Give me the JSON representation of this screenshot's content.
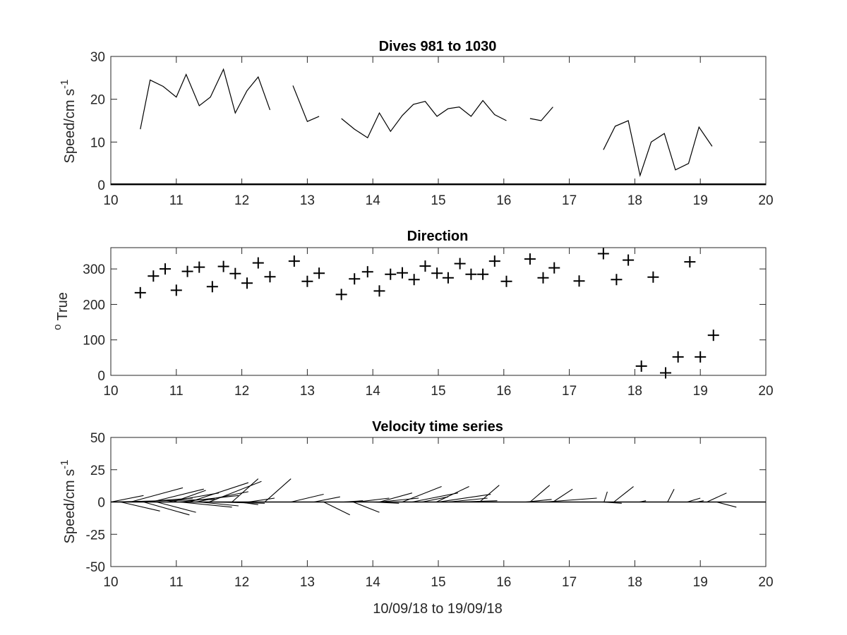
{
  "chart_data": [
    {
      "type": "line",
      "title": "Dives 981 to 1030",
      "ylabel": "Speed/cm s",
      "ylabel_superscript": "-1",
      "xlim": [
        10,
        20
      ],
      "ylim": [
        0,
        30
      ],
      "xticks": [
        10,
        11,
        12,
        13,
        14,
        15,
        16,
        17,
        18,
        19,
        20
      ],
      "yticks": [
        0,
        10,
        20,
        30
      ],
      "grid": false,
      "segments": [
        [
          [
            10.45,
            13
          ],
          [
            10.6,
            24.5
          ],
          [
            10.8,
            23
          ],
          [
            11.0,
            20.5
          ],
          [
            11.15,
            25.8
          ],
          [
            11.35,
            18.5
          ],
          [
            11.52,
            20.5
          ],
          [
            11.72,
            27
          ],
          [
            11.9,
            16.8
          ],
          [
            12.08,
            22
          ],
          [
            12.25,
            25.2
          ],
          [
            12.43,
            17.5
          ]
        ],
        [
          [
            12.78,
            23.2
          ],
          [
            13.0,
            14.8
          ],
          [
            13.18,
            16
          ]
        ],
        [
          [
            13.52,
            15.5
          ],
          [
            13.72,
            13
          ],
          [
            13.92,
            11
          ],
          [
            14.1,
            16.8
          ],
          [
            14.27,
            12.5
          ],
          [
            14.45,
            16.2
          ],
          [
            14.62,
            18.8
          ],
          [
            14.8,
            19.5
          ],
          [
            14.98,
            16
          ],
          [
            15.15,
            17.8
          ],
          [
            15.32,
            18.2
          ],
          [
            15.5,
            16
          ],
          [
            15.68,
            19.7
          ],
          [
            15.86,
            16.4
          ],
          [
            16.04,
            15
          ]
        ],
        [
          [
            16.4,
            15.5
          ],
          [
            16.57,
            15
          ],
          [
            16.75,
            18.2
          ]
        ],
        [
          [
            17.52,
            8.2
          ],
          [
            17.7,
            13.7
          ],
          [
            17.9,
            15
          ],
          [
            18.08,
            2.2
          ],
          [
            18.25,
            10
          ],
          [
            18.45,
            12
          ],
          [
            18.62,
            3.5
          ],
          [
            18.82,
            5
          ],
          [
            18.98,
            13.5
          ],
          [
            19.18,
            9
          ]
        ]
      ]
    },
    {
      "type": "scatter",
      "title": "Direction",
      "ylabel": "True",
      "ylabel_superscript": "o",
      "xlim": [
        10,
        20
      ],
      "ylim": [
        0,
        360
      ],
      "xticks": [
        10,
        11,
        12,
        13,
        14,
        15,
        16,
        17,
        18,
        19,
        20
      ],
      "yticks": [
        0,
        100,
        200,
        300
      ],
      "grid": false,
      "marker": "+",
      "points": [
        [
          10.45,
          233
        ],
        [
          10.65,
          280
        ],
        [
          10.83,
          300
        ],
        [
          11.0,
          240
        ],
        [
          11.17,
          293
        ],
        [
          11.35,
          305
        ],
        [
          11.55,
          250
        ],
        [
          11.72,
          307
        ],
        [
          11.9,
          287
        ],
        [
          12.08,
          260
        ],
        [
          12.25,
          317
        ],
        [
          12.43,
          278
        ],
        [
          12.8,
          322
        ],
        [
          13.0,
          265
        ],
        [
          13.18,
          288
        ],
        [
          13.52,
          228
        ],
        [
          13.72,
          272
        ],
        [
          13.92,
          292
        ],
        [
          14.1,
          238
        ],
        [
          14.27,
          285
        ],
        [
          14.45,
          289
        ],
        [
          14.63,
          270
        ],
        [
          14.8,
          308
        ],
        [
          14.98,
          288
        ],
        [
          15.15,
          275
        ],
        [
          15.33,
          315
        ],
        [
          15.5,
          285
        ],
        [
          15.68,
          285
        ],
        [
          15.86,
          322
        ],
        [
          16.04,
          265
        ],
        [
          16.4,
          328
        ],
        [
          16.6,
          275
        ],
        [
          16.77,
          303
        ],
        [
          17.15,
          266
        ],
        [
          17.52,
          343
        ],
        [
          17.72,
          270
        ],
        [
          17.9,
          325
        ],
        [
          18.1,
          26
        ],
        [
          18.28,
          277
        ],
        [
          18.47,
          7
        ],
        [
          18.66,
          52
        ],
        [
          18.84,
          320
        ],
        [
          19.0,
          52
        ],
        [
          19.2,
          113
        ]
      ]
    },
    {
      "type": "line",
      "title": "Velocity time series",
      "ylabel": "Speed/cm s",
      "ylabel_superscript": "-1",
      "xlabel": "10/09/18 to 19/09/18",
      "xlim": [
        10,
        20
      ],
      "ylim": [
        -50,
        50
      ],
      "xticks": [
        10,
        11,
        12,
        13,
        14,
        15,
        16,
        17,
        18,
        19,
        20
      ],
      "yticks": [
        -50,
        -25,
        0,
        25,
        50
      ],
      "grid": false,
      "note": "stick plot: each vector starts on the zero line at time t and ends at (t + dx, dy)",
      "vectors": [
        [
          10.0,
          0.5,
          5
        ],
        [
          10.0,
          1.6,
          2
        ],
        [
          10.15,
          0.6,
          -7
        ],
        [
          10.3,
          0.8,
          11
        ],
        [
          10.45,
          0.8,
          3
        ],
        [
          10.5,
          0.7,
          -10
        ],
        [
          10.62,
          0.8,
          10
        ],
        [
          10.7,
          0.6,
          -8
        ],
        [
          10.85,
          0.8,
          7
        ],
        [
          10.95,
          0.5,
          9
        ],
        [
          11.05,
          0.9,
          5
        ],
        [
          11.05,
          0.8,
          -4
        ],
        [
          11.2,
          0.9,
          15
        ],
        [
          11.3,
          0.8,
          8
        ],
        [
          11.35,
          0.6,
          -3
        ],
        [
          11.5,
          0.8,
          16
        ],
        [
          11.55,
          0.8,
          -1
        ],
        [
          11.85,
          0.4,
          18
        ],
        [
          11.95,
          0.3,
          -2
        ],
        [
          12.1,
          0.4,
          3
        ],
        [
          12.35,
          0.4,
          18
        ],
        [
          12.75,
          0.5,
          6
        ],
        [
          13.1,
          0.4,
          4
        ],
        [
          13.25,
          0.4,
          -10
        ],
        [
          13.55,
          0.3,
          1
        ],
        [
          13.75,
          0.5,
          3
        ],
        [
          13.7,
          0.4,
          -8
        ],
        [
          14.0,
          0.4,
          -1
        ],
        [
          14.1,
          0.5,
          7
        ],
        [
          14.1,
          0.6,
          3
        ],
        [
          14.45,
          0.6,
          12
        ],
        [
          14.6,
          0.7,
          7
        ],
        [
          14.75,
          0.4,
          4
        ],
        [
          14.97,
          0.5,
          12
        ],
        [
          15.0,
          0.8,
          6
        ],
        [
          15.15,
          0.6,
          3
        ],
        [
          15.3,
          0.6,
          1
        ],
        [
          15.63,
          0.3,
          13
        ],
        [
          16.4,
          0.3,
          13
        ],
        [
          16.33,
          0.4,
          2
        ],
        [
          16.62,
          0.8,
          3
        ],
        [
          16.75,
          0.3,
          10
        ],
        [
          17.5,
          0.3,
          -1
        ],
        [
          17.53,
          0.05,
          8
        ],
        [
          17.68,
          0.3,
          12
        ],
        [
          18.07,
          0.1,
          1
        ],
        [
          18.5,
          0.1,
          10
        ],
        [
          18.8,
          0.2,
          3
        ],
        [
          18.95,
          0.1,
          1
        ],
        [
          19.1,
          0.3,
          7
        ],
        [
          19.25,
          0.3,
          -4
        ]
      ]
    }
  ]
}
